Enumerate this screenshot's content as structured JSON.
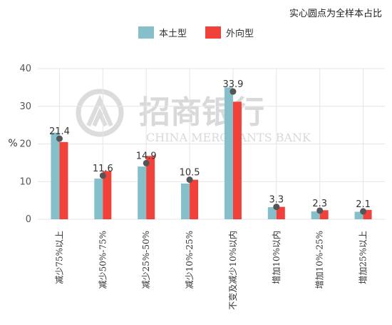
{
  "note": "实心圆点为全样本占比",
  "colors": {
    "series1": "#85bfca",
    "series2": "#f0413a",
    "dot": "#555555",
    "grid": "#e5e5e5"
  },
  "watermark": {
    "cn": "招商银行",
    "en": "CHINA MERCHANTS BANK"
  },
  "chart_data": {
    "type": "bar",
    "categories": [
      "减少75%以上",
      "减少50%-75%",
      "减少25%-50%",
      "减少10%-25%",
      "不变及减少10%以内",
      "增加10%以内",
      "增加10%-25%",
      "增加25%以上"
    ],
    "series": [
      {
        "name": "本土型",
        "values": [
          23.0,
          10.8,
          14.0,
          9.5,
          35.0,
          3.2,
          2.1,
          2.0
        ]
      },
      {
        "name": "外向型",
        "values": [
          20.5,
          12.8,
          16.8,
          10.5,
          31.2,
          3.3,
          2.4,
          2.5
        ]
      }
    ],
    "overall": [
      21.4,
      11.6,
      14.9,
      10.5,
      33.9,
      3.3,
      2.3,
      2.1
    ],
    "overall_labels": [
      "21.4",
      "11.6",
      "14.9",
      "10.5",
      "33.9",
      "3.3",
      "2.3",
      "2.1"
    ],
    "ylabel": "%",
    "ylim": [
      0,
      40
    ],
    "yticks": [
      0,
      10,
      20,
      30,
      40
    ],
    "grid": true,
    "legend": "top-center"
  }
}
